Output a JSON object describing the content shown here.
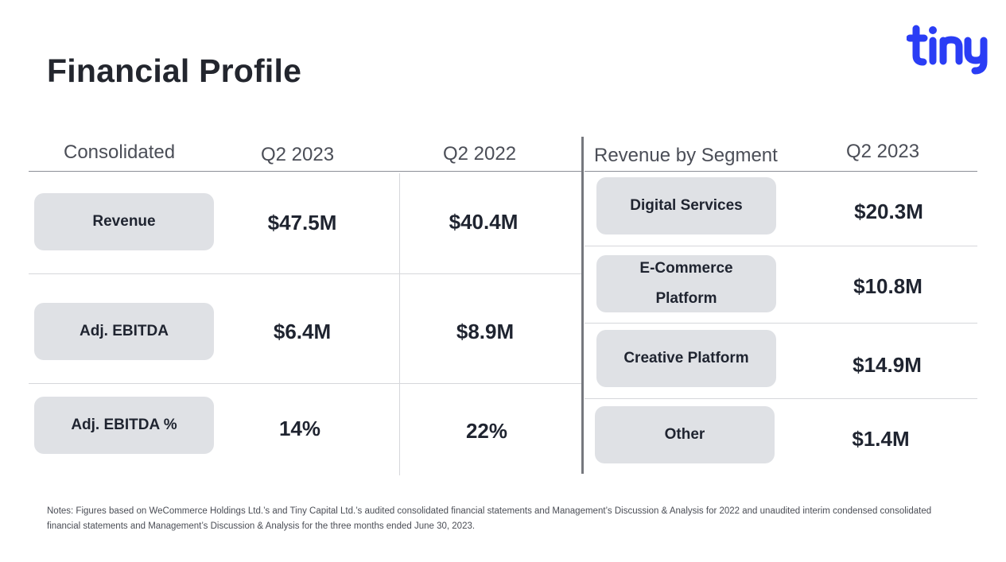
{
  "title": "Financial Profile",
  "logo": {
    "text": "tiny",
    "color": "#2a3df5"
  },
  "consolidated": {
    "headers": [
      "Consolidated",
      "Q2 2023",
      "Q2 2022"
    ],
    "rows": [
      {
        "label": "Revenue",
        "q2_2023": "$47.5M",
        "q2_2022": "$40.4M"
      },
      {
        "label": "Adj. EBITDA",
        "q2_2023": "$6.4M",
        "q2_2022": "$8.9M"
      },
      {
        "label": "Adj. EBITDA %",
        "q2_2023": "14%",
        "q2_2022": "22%"
      }
    ]
  },
  "segments": {
    "headers": [
      "Revenue by Segment",
      "Q2 2023"
    ],
    "rows": [
      {
        "label": "Digital Services",
        "q2_2023": "$20.3M"
      },
      {
        "label_line1": "E-Commerce",
        "label_line2": "Platform",
        "q2_2023": "$10.8M"
      },
      {
        "label": "Creative Platform",
        "q2_2023": "$14.9M"
      },
      {
        "label": "Other",
        "q2_2023": "$1.4M"
      }
    ]
  },
  "notes": "Notes: Figures based on WeCommerce Holdings Ltd.’s and Tiny Capital Ltd.’s  audited consolidated financial statements and Management’s Discussion & Analysis for 2022 and unaudited interim condensed consolidated financial statements and Management’s Discussion & Analysis for the three months ended June 30, 2023.",
  "colors": {
    "pill_background": "#dfe1e5",
    "divider": "#76787e",
    "text": "#1f2430"
  }
}
